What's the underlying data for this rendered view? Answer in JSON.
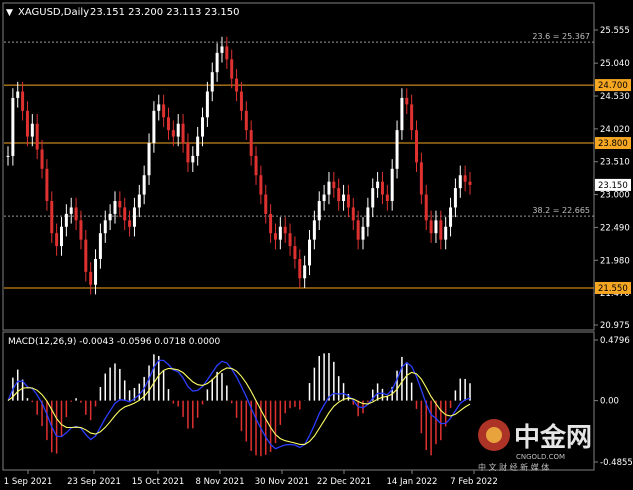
{
  "header": {
    "menu_glyph": "▼",
    "symbol": "XAGUSD,Daily",
    "ohlc": "23.151 23.200 23.113 23.150"
  },
  "price_axis": {
    "ticks": [
      "25.555",
      "25.040",
      "24.530",
      "24.020",
      "23.510",
      "23.000",
      "22.490",
      "21.980",
      "21.470",
      "20.975"
    ],
    "range": [
      20.975,
      25.555
    ],
    "tick_values": [
      25.555,
      25.04,
      24.53,
      24.02,
      23.51,
      23.0,
      22.49,
      21.98,
      21.47,
      20.975
    ],
    "last_price_label": "23.150",
    "last_price": 23.15
  },
  "levels": [
    {
      "name": "level-24700",
      "label": "24.700",
      "value": 24.7,
      "color": "#f5a623"
    },
    {
      "name": "level-23800",
      "label": "23.800",
      "value": 23.8,
      "color": "#f5a623"
    },
    {
      "name": "level-21550",
      "label": "21.550",
      "value": 21.55,
      "color": "#f5a623"
    }
  ],
  "fib_levels": [
    {
      "name": "fib-23-6",
      "label": "23.6 = 25.367",
      "value": 25.367
    },
    {
      "name": "fib-38-2",
      "label": "38.2 = 22.665",
      "value": 22.665
    }
  ],
  "macd": {
    "label": "MACD(12,26,9) -0.0043 -0.0596 0.0718 0.0000",
    "axis_ticks": [
      "0.4796",
      "0.00",
      "-0.4855"
    ],
    "axis_values": [
      0.4796,
      0.0,
      -0.4855
    ],
    "histogram_up_color": "#ffffff",
    "histogram_down_color": "#e03131",
    "main_line_color": "#2b3dff",
    "signal_line_color": "#ffff66"
  },
  "time_axis": [
    "1 Sep 2021",
    "23 Sep 2021",
    "15 Oct 2021",
    "8 Nov 2021",
    "30 Nov 2021",
    "22 Dec 2021",
    "14 Jan 2022",
    "7 Feb 2022"
  ],
  "watermark": {
    "brand": "中金网",
    "site": "CNGOLD.COM",
    "tagline": "中 文 财 经 新 媒 体"
  },
  "colors": {
    "background": "#000000",
    "grid": "#808080",
    "bull_candle": "#ffffff",
    "bear_candle": "#e03131",
    "level_line": "#f5a623"
  }
}
